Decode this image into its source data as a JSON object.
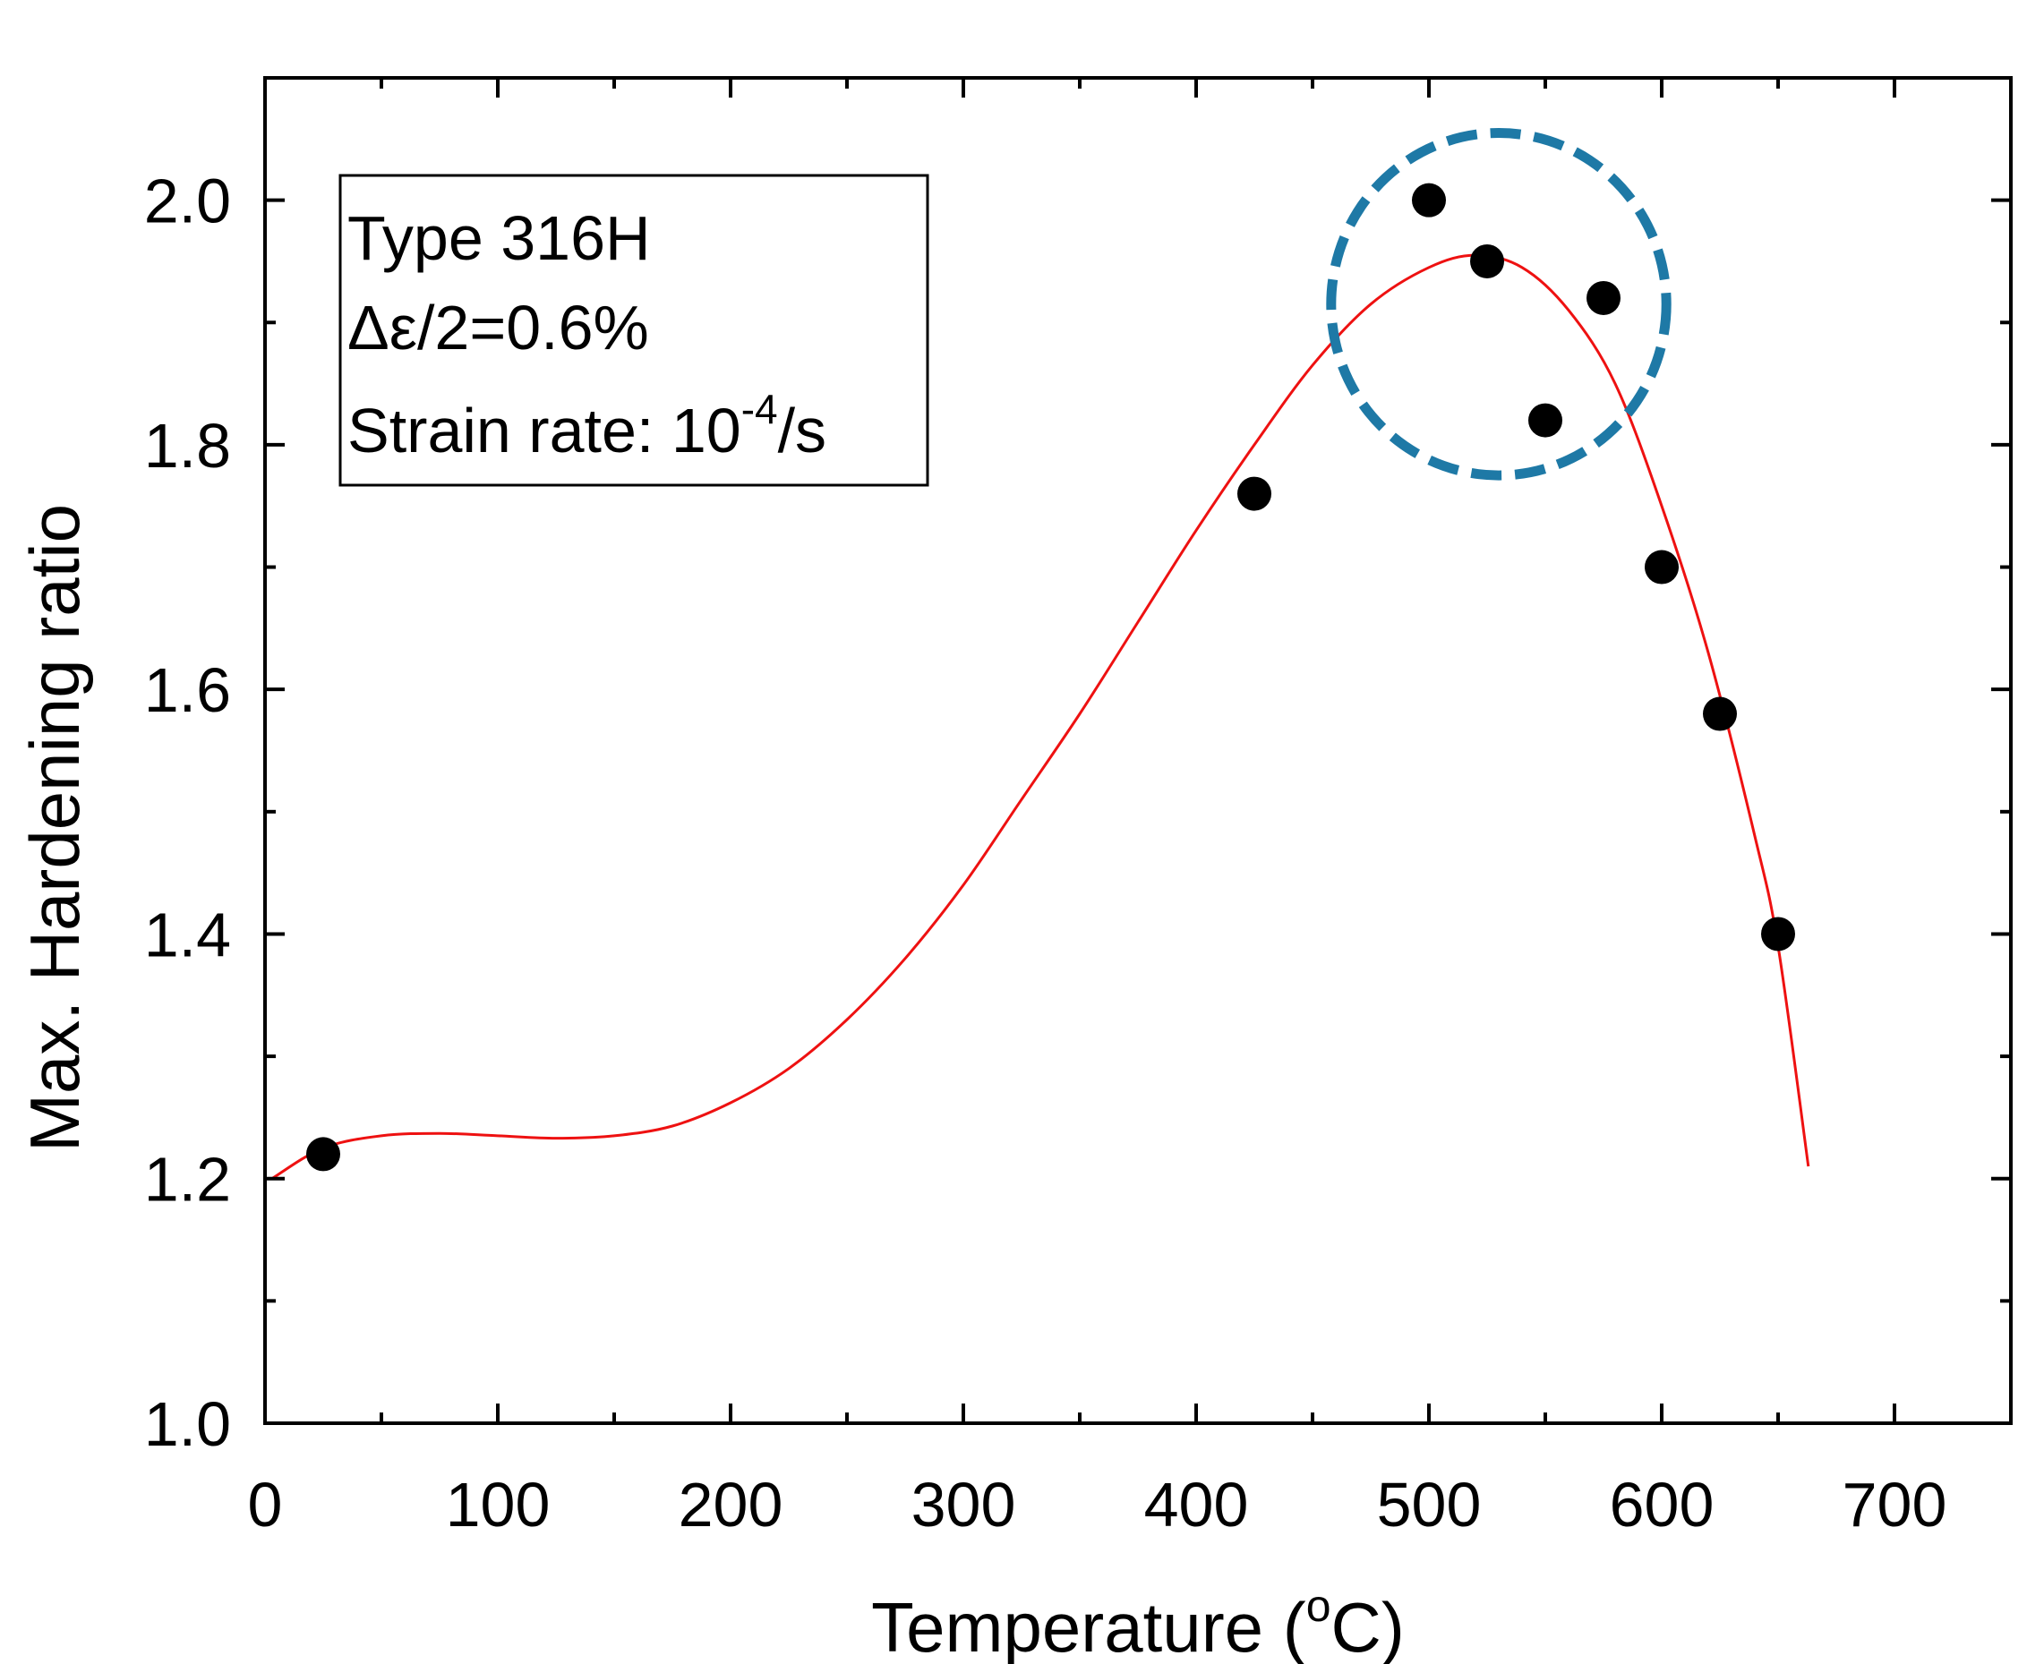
{
  "chart_data": {
    "type": "scatter",
    "title": "",
    "xlabel": "Temperature",
    "xlabel_unit_open": " (",
    "xlabel_unit_sup": "o",
    "xlabel_unit_close": "C)",
    "ylabel": "Max. Hardening ratio",
    "xlim": [
      0,
      750
    ],
    "ylim": [
      1.0,
      2.1
    ],
    "x_ticks": [
      0,
      100,
      200,
      300,
      400,
      500,
      600,
      700
    ],
    "x_tick_labels": [
      "0",
      "100",
      "200",
      "300",
      "400",
      "500",
      "600",
      "700"
    ],
    "x_minor_ticks": [
      50,
      150,
      250,
      350,
      450,
      550,
      650,
      750
    ],
    "y_ticks": [
      1.0,
      1.2,
      1.4,
      1.6,
      1.8,
      2.0
    ],
    "y_tick_labels": [
      "1.0",
      "1.2",
      "1.4",
      "1.6",
      "1.8",
      "2.0"
    ],
    "y_minor_ticks": [
      1.1,
      1.3,
      1.5,
      1.7,
      1.9
    ],
    "grid": false,
    "series": [
      {
        "name": "Type 316H data",
        "marker": "filled-circle",
        "color": "#000000",
        "x": [
          25,
          425,
          500,
          525,
          550,
          575,
          600,
          625,
          650
        ],
        "y": [
          1.22,
          1.76,
          2.0,
          1.95,
          1.82,
          1.92,
          1.7,
          1.58,
          1.4
        ]
      },
      {
        "name": "fit curve",
        "style": "line",
        "color": "#ee1111",
        "x": [
          3,
          25,
          50,
          75,
          100,
          125,
          150,
          175,
          200,
          225,
          250,
          275,
          300,
          325,
          350,
          375,
          400,
          425,
          450,
          475,
          500,
          520,
          540,
          560,
          580,
          600,
          620,
          640,
          650,
          663
        ],
        "y": [
          1.2,
          1.225,
          1.235,
          1.237,
          1.235,
          1.233,
          1.235,
          1.243,
          1.262,
          1.29,
          1.33,
          1.38,
          1.44,
          1.51,
          1.58,
          1.655,
          1.73,
          1.8,
          1.865,
          1.915,
          1.945,
          1.955,
          1.945,
          1.91,
          1.85,
          1.75,
          1.63,
          1.48,
          1.39,
          1.21
        ]
      }
    ],
    "annotation_box": {
      "line1": "Type 316H",
      "line2": "Δε/2=0.6%",
      "line3_base": "Strain rate: 10",
      "line3_sup": "-4",
      "line3_tail": "/s"
    },
    "highlight_circle": {
      "center_x": 530,
      "center_y": 1.915,
      "radius_x_units": 72,
      "radius_y_units": 0.14,
      "style": "dashed",
      "color": "#1e79a6"
    }
  }
}
